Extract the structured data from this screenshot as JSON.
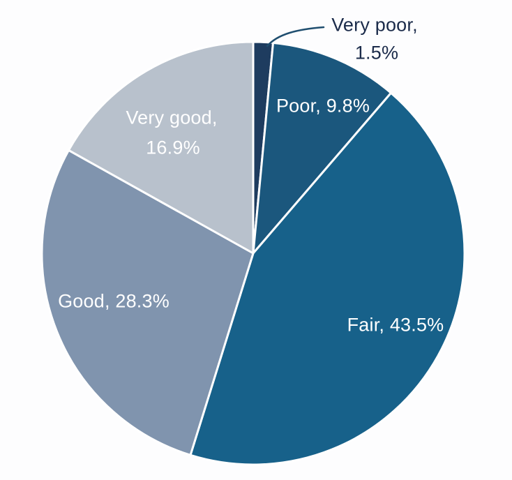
{
  "chart_data": {
    "type": "pie",
    "unit": "%",
    "start_angle_deg": 0,
    "direction": "clockwise",
    "background_color": "#fdfdfe",
    "divider_color": "#ffffff",
    "segments": [
      {
        "name": "Very poor",
        "value": 1.5,
        "color": "#1e3c5f",
        "label_placement": "outside-top",
        "label_color": "#1b2b4a"
      },
      {
        "name": "Poor",
        "value": 9.8,
        "color": "#1b577d",
        "label_placement": "inside",
        "label_color": "#ffffff"
      },
      {
        "name": "Fair",
        "value": 43.5,
        "color": "#17618a",
        "label_placement": "inside",
        "label_color": "#ffffff"
      },
      {
        "name": "Good",
        "value": 28.3,
        "color": "#8094ae",
        "label_placement": "inside",
        "label_color": "#ffffff"
      },
      {
        "name": "Very good",
        "value": 16.9,
        "color": "#b8c1cc",
        "label_placement": "inside",
        "label_color": "#ffffff"
      }
    ],
    "labels": {
      "very_poor_line1": "Very poor,",
      "very_poor_line2": "1.5%",
      "poor": "Poor, 9.8%",
      "fair": "Fair, 43.5%",
      "good": "Good, 28.3%",
      "very_good_line1": "Very good,",
      "very_good_line2": "16.9%"
    },
    "leader_line_color": "#1f4e6f",
    "legend": "none",
    "axes": "none"
  }
}
